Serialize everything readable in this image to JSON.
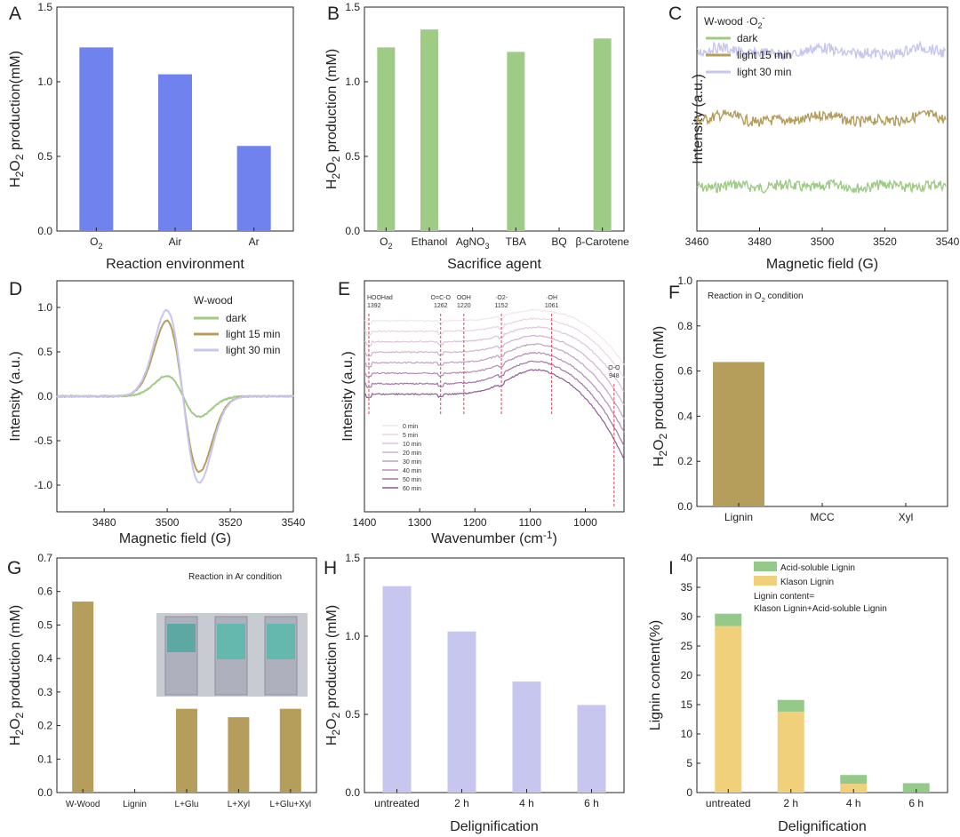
{
  "colors": {
    "blue": "#6f82ee",
    "green": "#9ecb86",
    "olive": "#b59e5c",
    "lavender": "#c7c6ef",
    "purple": "#a07aa8",
    "red_dash": "#e0434f",
    "klason": "#f0d07a",
    "acid": "#95c98a",
    "axis": "#222222"
  },
  "chart_data": [
    {
      "panel": "A",
      "type": "bar",
      "ylabel": "H2O2 production(mM)",
      "xlabel": "Reaction environment",
      "categories": [
        "O2",
        "Air",
        "Ar"
      ],
      "values": [
        1.23,
        1.05,
        0.57
      ],
      "ylim": [
        0,
        1.5
      ],
      "yticks": [
        "0.0",
        "0.5",
        "1.0",
        "1.5"
      ],
      "ytick_values": [
        0,
        0.5,
        1.0,
        1.5
      ],
      "color": "#6f82ee"
    },
    {
      "panel": "B",
      "type": "bar",
      "ylabel": "H2O2 production (mM)",
      "xlabel": "Sacrifice agent",
      "categories": [
        "O2",
        "Ethanol",
        "AgNO3",
        "TBA",
        "BQ",
        "β-Carotene"
      ],
      "values": [
        1.23,
        1.35,
        0.0,
        1.2,
        0.0,
        1.29
      ],
      "ylim": [
        0,
        1.5
      ],
      "yticks": [
        "0.0",
        "0.5",
        "1.0",
        "1.5"
      ],
      "ytick_values": [
        0,
        0.5,
        1.0,
        1.5
      ],
      "color": "#9ecb86"
    },
    {
      "panel": "C",
      "type": "line",
      "ylabel": "Intensity (a.u.)",
      "xlabel": "Magnetic field (G)",
      "legend_title": "W-wood ·O2-",
      "xlim": [
        3460,
        3540
      ],
      "xticks": [
        "3460",
        "3480",
        "3500",
        "3520",
        "3540"
      ],
      "series": [
        {
          "name": "dark",
          "color": "#9ecb86",
          "baseline": 0.2
        },
        {
          "name": "light 15 min",
          "color": "#b59e5c",
          "baseline": 0.5
        },
        {
          "name": "light 30 min",
          "color": "#c7c6ef",
          "baseline": 0.8
        }
      ]
    },
    {
      "panel": "D",
      "type": "line",
      "ylabel": "Intensity (a.u.)",
      "xlabel": "Magnetic field (G)",
      "legend_title": "W-wood",
      "xlim": [
        3465,
        3540
      ],
      "xticks": [
        "3480",
        "3500",
        "3520",
        "3540"
      ],
      "ylim": [
        -1.3,
        1.3
      ],
      "yticks": [
        "-1.0",
        "-0.5",
        "0.0",
        "0.5",
        "1.0"
      ],
      "ytick_values": [
        -1.0,
        -0.5,
        0.0,
        0.5,
        1.0
      ],
      "series": [
        {
          "name": "dark",
          "color": "#9ecb86",
          "amplitude": 0.23
        },
        {
          "name": "light 15 min",
          "color": "#b59e5c",
          "amplitude": 0.85
        },
        {
          "name": "light 30 min",
          "color": "#c7c6ef",
          "amplitude": 0.97
        }
      ]
    },
    {
      "panel": "E",
      "type": "line",
      "ylabel": "Intensity (a.u.)",
      "xlabel": "Wavenumber (cm-1)",
      "xlim": [
        1400,
        930
      ],
      "xticks": [
        "1400",
        "1300",
        "1200",
        "1100",
        "1000"
      ],
      "xtick_values": [
        1400,
        1300,
        1200,
        1100,
        1000
      ],
      "series": [
        {
          "name": "0 min",
          "color": "#f1e6ef"
        },
        {
          "name": "5 min",
          "color": "#e7d7e5"
        },
        {
          "name": "10 min",
          "color": "#dcc6da"
        },
        {
          "name": "20 min",
          "color": "#d1b4cf"
        },
        {
          "name": "30 min",
          "color": "#c4a0c3"
        },
        {
          "name": "40 min",
          "color": "#b78bb7"
        },
        {
          "name": "50 min",
          "color": "#a676a8"
        },
        {
          "name": "60 min",
          "color": "#8f5c92"
        }
      ],
      "annotations": [
        {
          "label": "HOOHad",
          "wavenumber": "1392",
          "x": 1392
        },
        {
          "label": "O=C-O",
          "wavenumber": "1262",
          "x": 1262
        },
        {
          "label": "OOH",
          "wavenumber": "1220",
          "x": 1220
        },
        {
          "label": "·O2-",
          "wavenumber": "1152",
          "x": 1152
        },
        {
          "label": "·OH",
          "wavenumber": "1061",
          "x": 1061
        },
        {
          "label": "O-O",
          "wavenumber": "948",
          "x": 948
        }
      ]
    },
    {
      "panel": "F",
      "type": "bar",
      "ylabel": "H2O2 production (mM)",
      "title": "Reaction in O2 condition",
      "categories": [
        "Lignin",
        "MCC",
        "Xyl"
      ],
      "values": [
        0.64,
        0.0,
        0.0
      ],
      "ylim": [
        0,
        1.0
      ],
      "yticks": [
        "0.0",
        "0.2",
        "0.4",
        "0.6",
        "0.8",
        "1.0"
      ],
      "ytick_values": [
        0,
        0.2,
        0.4,
        0.6,
        0.8,
        1.0
      ],
      "color": "#b59e5c"
    },
    {
      "panel": "G",
      "type": "bar",
      "ylabel": "H2O2 production (mM)",
      "title": "Reaction in Ar condition",
      "categories": [
        "W-Wood",
        "Lignin",
        "L+Glu",
        "L+Xyl",
        "L+Glu+Xyl"
      ],
      "values": [
        0.57,
        0.0,
        0.25,
        0.225,
        0.25
      ],
      "ylim": [
        0,
        0.7
      ],
      "yticks": [
        "0.0",
        "0.1",
        "0.2",
        "0.3",
        "0.4",
        "0.5",
        "0.6",
        "0.7"
      ],
      "ytick_values": [
        0,
        0.1,
        0.2,
        0.3,
        0.4,
        0.5,
        0.6,
        0.7
      ],
      "color": "#b59e5c"
    },
    {
      "panel": "H",
      "type": "bar",
      "ylabel": "H2O2 production (mM)",
      "xlabel": "Delignification",
      "categories": [
        "untreated",
        "2 h",
        "4 h",
        "6 h"
      ],
      "values": [
        1.32,
        1.03,
        0.71,
        0.56
      ],
      "ylim": [
        0,
        1.5
      ],
      "yticks": [
        "0.0",
        "0.5",
        "1.0",
        "1.5"
      ],
      "ytick_values": [
        0,
        0.5,
        1.0,
        1.5
      ],
      "color": "#c7c6ef"
    },
    {
      "panel": "I",
      "type": "bar",
      "ylabel": "Lignin content(%)",
      "xlabel": "Delignification",
      "categories": [
        "untreated",
        "2 h",
        "4 h",
        "6 h"
      ],
      "series": [
        {
          "name": "Klason Lignin",
          "values": [
            28.4,
            13.8,
            1.5,
            0.0
          ],
          "color": "#f0d07a"
        },
        {
          "name": "Acid-soluble Lignin",
          "values": [
            2.1,
            2.0,
            1.5,
            1.6
          ],
          "color": "#95c98a"
        }
      ],
      "legend_note": [
        "Lignin content=",
        "Klason Lignin+Acid-soluble Lignin"
      ],
      "ylim": [
        0,
        40
      ],
      "yticks": [
        "0",
        "5",
        "10",
        "15",
        "20",
        "25",
        "30",
        "35",
        "40"
      ],
      "ytick_values": [
        0,
        5,
        10,
        15,
        20,
        25,
        30,
        35,
        40
      ]
    }
  ]
}
